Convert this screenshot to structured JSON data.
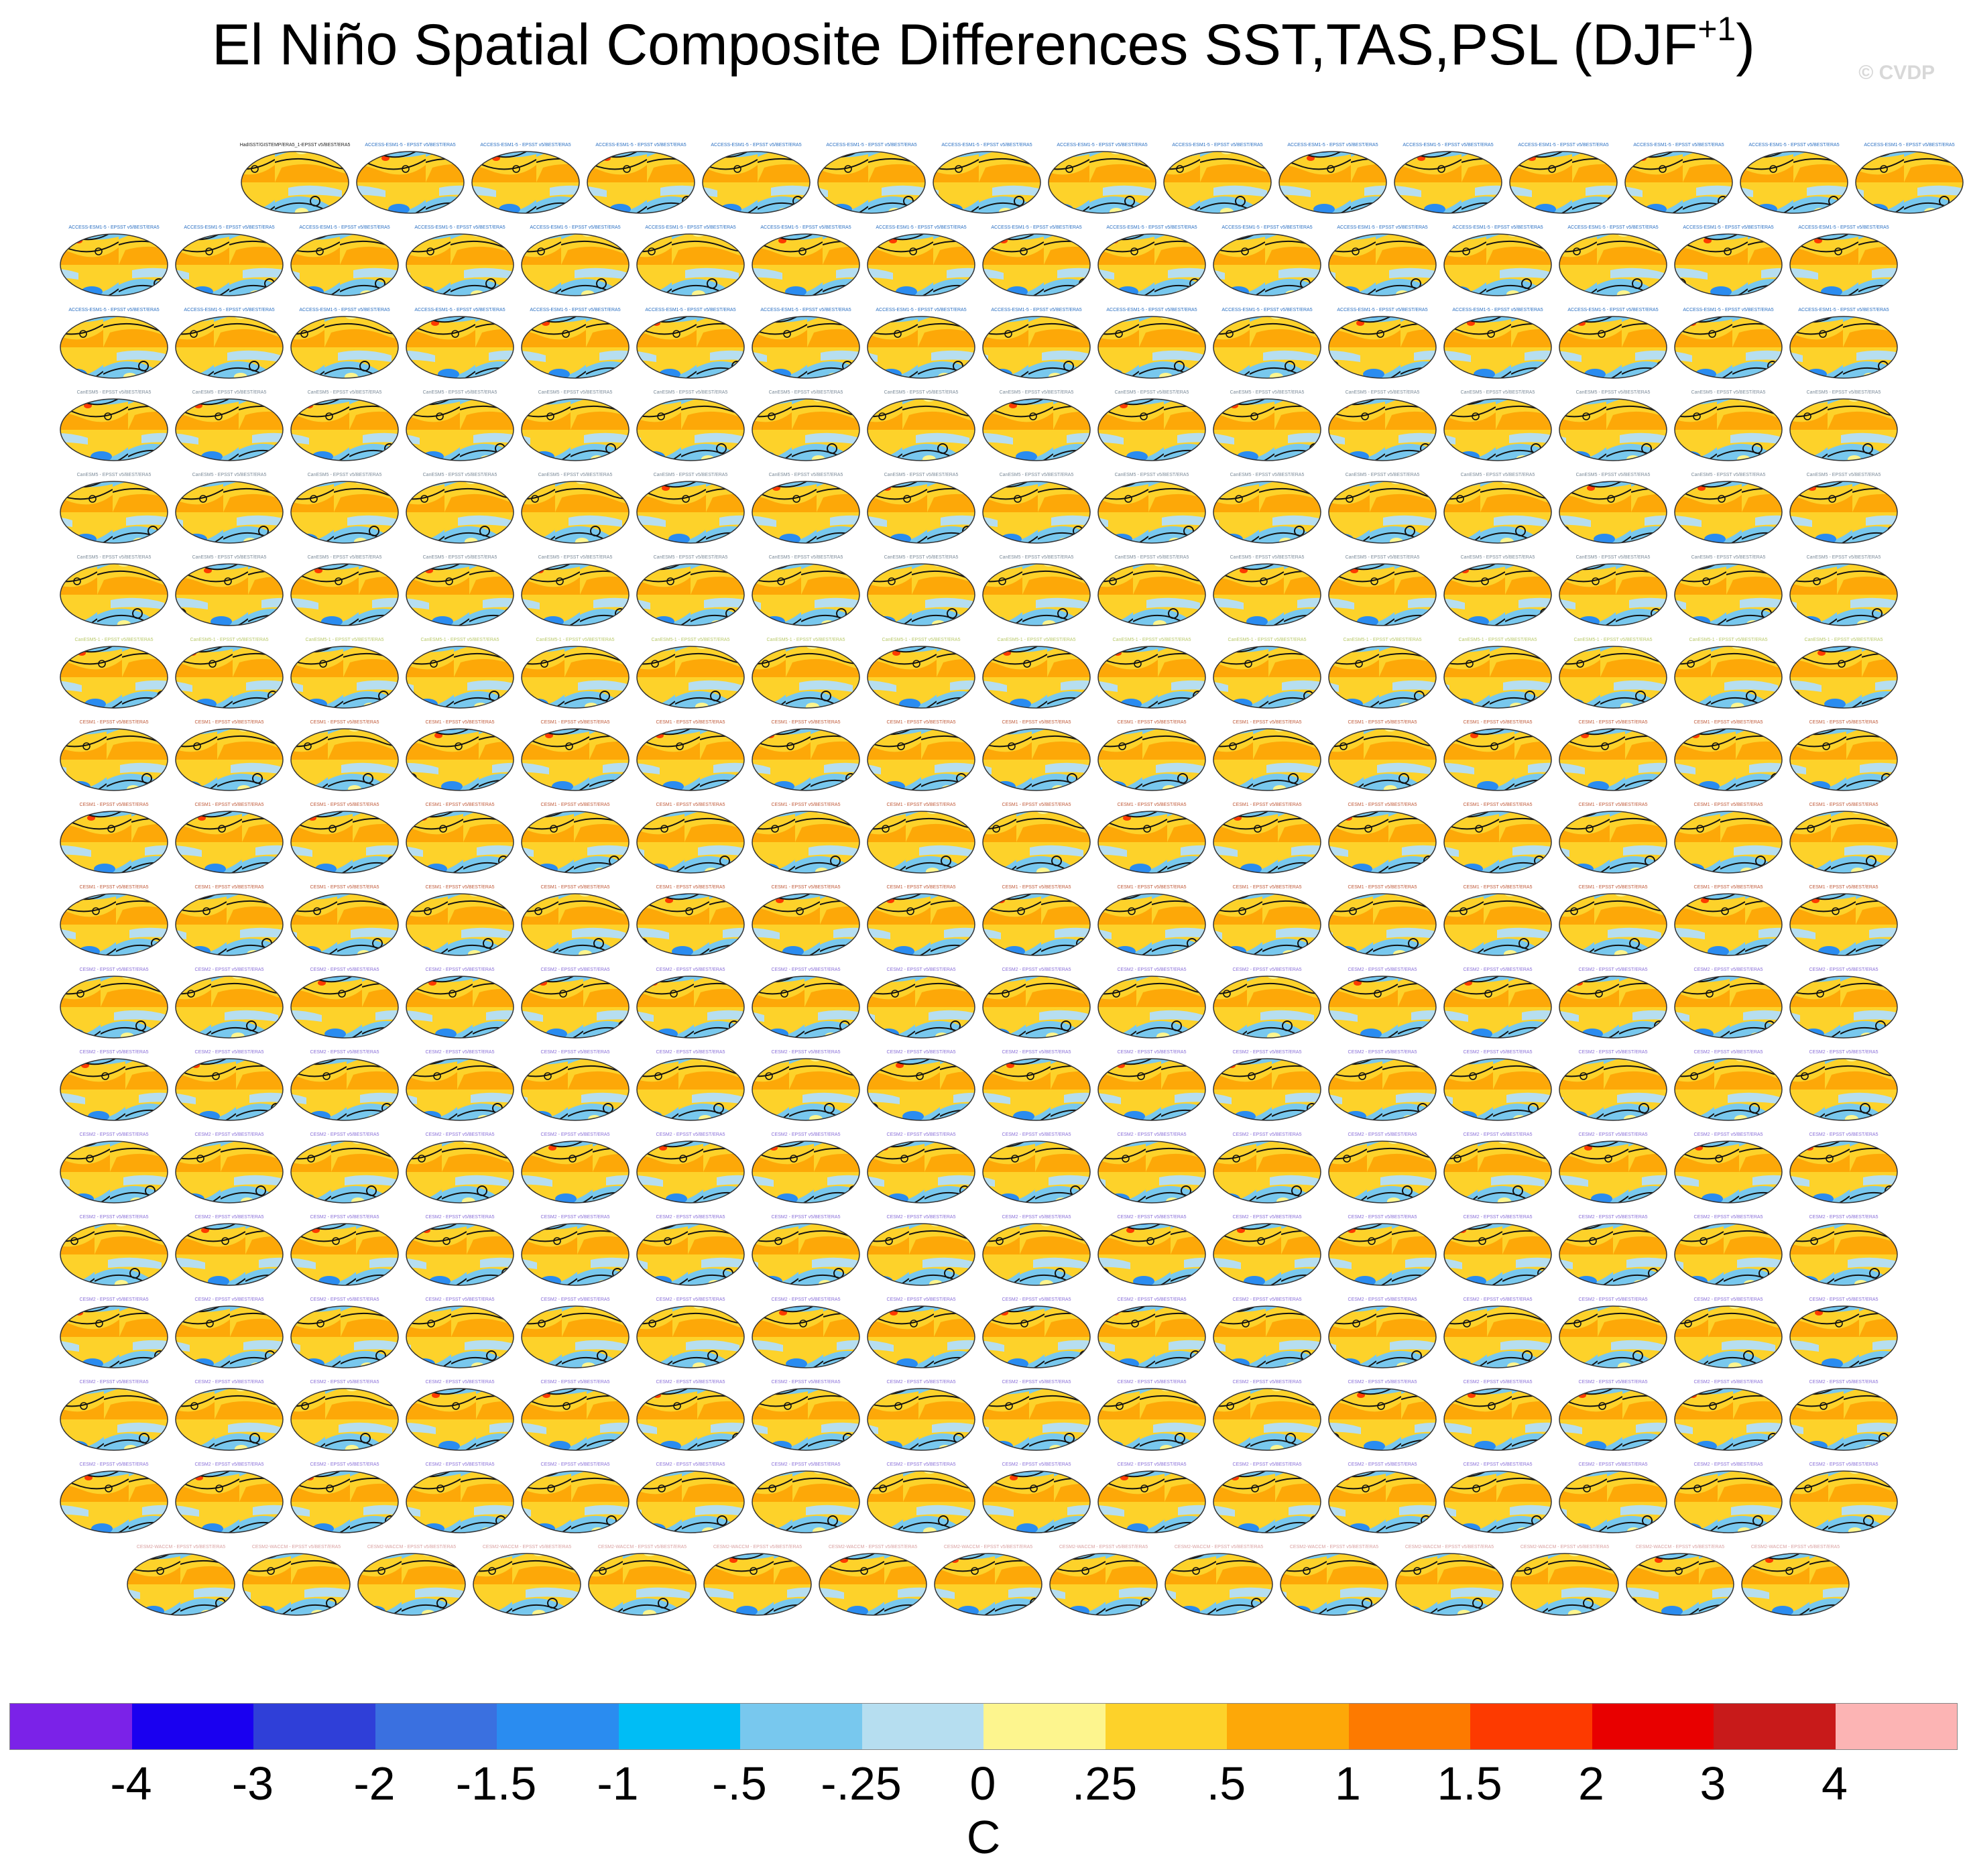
{
  "title": "El Niño Spatial Composite Differences SST,TAS,PSL (DJF",
  "title_sup": "+1",
  "title_close": ")",
  "watermark": "© CVDP",
  "chart_data": {
    "type": "heatmap",
    "description_kind": "panel grid of global map composites",
    "panel_rows": [
      15,
      16,
      16,
      16,
      16,
      16,
      16,
      16,
      16,
      16,
      16,
      16,
      16,
      16,
      16,
      16,
      16,
      15
    ],
    "first_panel_label": "HadISST/GISTEMP/ERA5_1-EPSST v5/BEST/ERA5",
    "panel_label_groups": [
      {
        "rows": [
          0,
          1,
          2
        ],
        "label": "ACCESS-ESM1-5 - EPSST v5/BEST/ERA5",
        "color": "#2a6fc2"
      },
      {
        "rows": [
          3,
          4,
          5
        ],
        "label": "CanESM5 - EPSST v5/BEST/ERA5",
        "color": "#7b8a98"
      },
      {
        "rows": [
          6,
          7
        ],
        "label": "CanESM5-1 - EPSST v5/BEST/ERA5",
        "color": "#b9c96a"
      },
      {
        "rows": [
          7,
          8,
          9
        ],
        "label": "CESM1 - EPSST v5/BEST/ERA5",
        "color": "#c05a3a"
      },
      {
        "rows": [
          10,
          11,
          12,
          13,
          14,
          15,
          16
        ],
        "label": "CESM2 - EPSST v5/BEST/ERA5",
        "color": "#8a6fd8"
      },
      {
        "rows": [
          17
        ],
        "label": "CESM2-WACCM - EPSST v5/BEST/ERA5",
        "color": "#d9a0a0"
      }
    ],
    "colorbar": {
      "levels": [
        "-4",
        "-3",
        "-2",
        "-1.5",
        "-1",
        "-.5",
        "-.25",
        "0",
        ".25",
        ".5",
        "1",
        "1.5",
        "2",
        "3",
        "4"
      ],
      "colors": [
        "#7b22e8",
        "#1a00f0",
        "#2f3fd8",
        "#3a70e0",
        "#2a8cf0",
        "#00bdf5",
        "#78c8ee",
        "#b6def0",
        "#fdf58e",
        "#fdd22a",
        "#fda808",
        "#fd7a00",
        "#fd3a00",
        "#e80000",
        "#c81a1a",
        "#fcb4b4"
      ],
      "units": "C"
    }
  }
}
